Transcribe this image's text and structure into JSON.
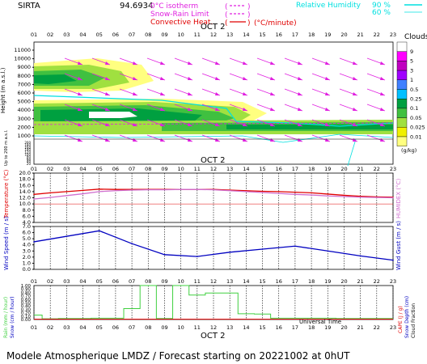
{
  "header": {
    "site": "SIRTA",
    "coords": "94.6934",
    "legend_left": [
      {
        "label": "0°C isotherm",
        "color": "#e020e0",
        "style": "dash"
      },
      {
        "label": "Snow-Rain Limit",
        "color": "#e020e0",
        "style": "dash"
      },
      {
        "label": "Convective Heat.",
        "color": "#e00000",
        "style": "solid",
        "unit": "(°C/minute)"
      }
    ],
    "legend_right": {
      "label": "Relative Humidity",
      "color": "#00e0e0",
      "values": [
        "90 %",
        "60 %"
      ]
    }
  },
  "x_axis": {
    "hours": [
      "01",
      "02",
      "03",
      "04",
      "05",
      "06",
      "07",
      "08",
      "09",
      "10",
      "11",
      "12",
      "13",
      "14",
      "15",
      "16",
      "17",
      "18",
      "19",
      "20",
      "21",
      "22",
      "23"
    ],
    "date_label": "OCT 2",
    "bottom_label": "Universal Time"
  },
  "clouds_panel": {
    "ylabel": "Height (m a.s.l.)",
    "ylabel2": "Up to 200 m a.s.l.",
    "ticks_upper": [
      "11000",
      "10000",
      "9000",
      "8000",
      "7000",
      "6000",
      "5000",
      "4000",
      "3000",
      "2000",
      "1000"
    ],
    "ticks_lower": [
      "200",
      "190",
      "180",
      "170",
      "160",
      "150",
      "140",
      "130",
      "120",
      "110",
      "100",
      "90",
      "80",
      "70",
      "60",
      "50",
      "40",
      "30",
      "20",
      "10"
    ],
    "legend_title": "Clouds",
    "legend_levels": [
      "9",
      "5",
      "3",
      "1",
      "0.5",
      "0.25",
      "0.1",
      "0.05",
      "0.025",
      "0.01"
    ],
    "legend_unit": "(g/kg)",
    "legend_colors": [
      "#ffffff",
      "#ff00ff",
      "#c000c0",
      "#a000ff",
      "#4080ff",
      "#00c0ff",
      "#00a040",
      "#40c040",
      "#a0e040",
      "#f0f000",
      "#ffff80"
    ]
  },
  "temp_panel": {
    "ylabel_left": "Temperature (°C)",
    "ylabel_right": "HUMIDEX (°C)",
    "ticks": [
      "20.0",
      "18.0",
      "16.0",
      "14.0",
      "12.0",
      "10.0",
      "8.0",
      "6.0",
      "4.0"
    ]
  },
  "wind_panel": {
    "ylabel_left": "Wind Speed (m / s)",
    "ylabel_right": "Wind Gust (m / s)",
    "ticks": [
      "7.0",
      "6.0",
      "5.0",
      "4.0",
      "3.0",
      "2.0",
      "1.0",
      "0.0"
    ]
  },
  "rain_panel": {
    "ylabel_left1": "Rain (mm / hour)",
    "ylabel_left2": "Snow (cm / hour)",
    "ylabel_right1": "CAPE (J / g)",
    "ylabel_right2": "Snow Depth (cm)",
    "ylabel_right3": "Cloud Fraction",
    "ticks": [
      "1.00",
      "0.90",
      "0.80",
      "0.70",
      "0.60",
      "0.50",
      "0.40",
      "0.30",
      "0.20",
      "0.10",
      "0.00"
    ]
  },
  "footer": {
    "text": "Modele Atmospherique LMDZ / Forecast starting on 20221002 at 0hUT"
  },
  "chart_data": [
    {
      "type": "line",
      "title": "Temperature",
      "x": [
        1,
        2,
        3,
        4,
        5,
        6,
        7,
        8,
        9,
        10,
        11,
        12,
        13,
        14,
        15,
        16,
        17,
        18,
        19,
        20,
        21,
        22,
        23
      ],
      "series": [
        {
          "name": "Temperature",
          "color": "#e00000",
          "values": [
            13.1,
            13.6,
            14.0,
            14.4,
            14.8,
            14.7,
            14.7,
            14.7,
            14.7,
            14.7,
            14.7,
            14.7,
            14.5,
            14.3,
            14.1,
            14.0,
            13.8,
            13.6,
            13.2,
            12.8,
            12.5,
            12.3,
            12.2
          ]
        },
        {
          "name": "HUMIDEX",
          "color": "#d070d0",
          "values": [
            11.6,
            12.1,
            12.7,
            13.3,
            14.0,
            14.3,
            14.5,
            14.6,
            14.6,
            14.7,
            14.7,
            14.6,
            14.3,
            14.0,
            13.7,
            13.4,
            13.1,
            12.9,
            12.6,
            12.4,
            12.2,
            12.1,
            12.0
          ]
        }
      ],
      "ylim": [
        4,
        20
      ]
    },
    {
      "type": "line",
      "title": "Wind Speed",
      "x": [
        1,
        5,
        7,
        9,
        11,
        13,
        15,
        17,
        19,
        21,
        23
      ],
      "series": [
        {
          "name": "Wind Speed",
          "color": "#0000c0",
          "values": [
            4.5,
            6.3,
            4.2,
            2.4,
            2.1,
            2.8,
            3.3,
            3.8,
            3.0,
            2.2,
            1.5
          ]
        }
      ],
      "ylim": [
        0,
        7
      ]
    },
    {
      "type": "bar",
      "title": "Rain",
      "x": [
        1,
        2,
        3,
        4,
        5,
        6,
        7,
        8,
        9,
        10,
        11,
        12,
        13,
        14,
        15,
        16,
        17,
        18,
        19,
        20,
        21,
        22,
        23
      ],
      "series": [
        {
          "name": "Rain",
          "color": "#40d040",
          "values": [
            0.13,
            0.02,
            0.03,
            0.03,
            0.04,
            0.04,
            0.32,
            1.0,
            0.03,
            1.0,
            0.72,
            0.78,
            0.78,
            0.17,
            0.16,
            0.04,
            0.04,
            0.04,
            0.04,
            0.03,
            0.03,
            0.03,
            0.03
          ]
        },
        {
          "name": "CAPE",
          "color": "#e00000",
          "values": [
            0.01,
            0.01,
            0.01,
            0.01,
            0.01,
            0.01,
            0.01,
            0.01,
            0.01,
            0.01,
            0.01,
            0.01,
            0.01,
            0.01,
            0.01,
            0.01,
            0.01,
            0.01,
            0.01,
            0.01,
            0.01,
            0.01,
            0.01
          ]
        }
      ],
      "ylim": [
        0,
        1
      ]
    }
  ]
}
